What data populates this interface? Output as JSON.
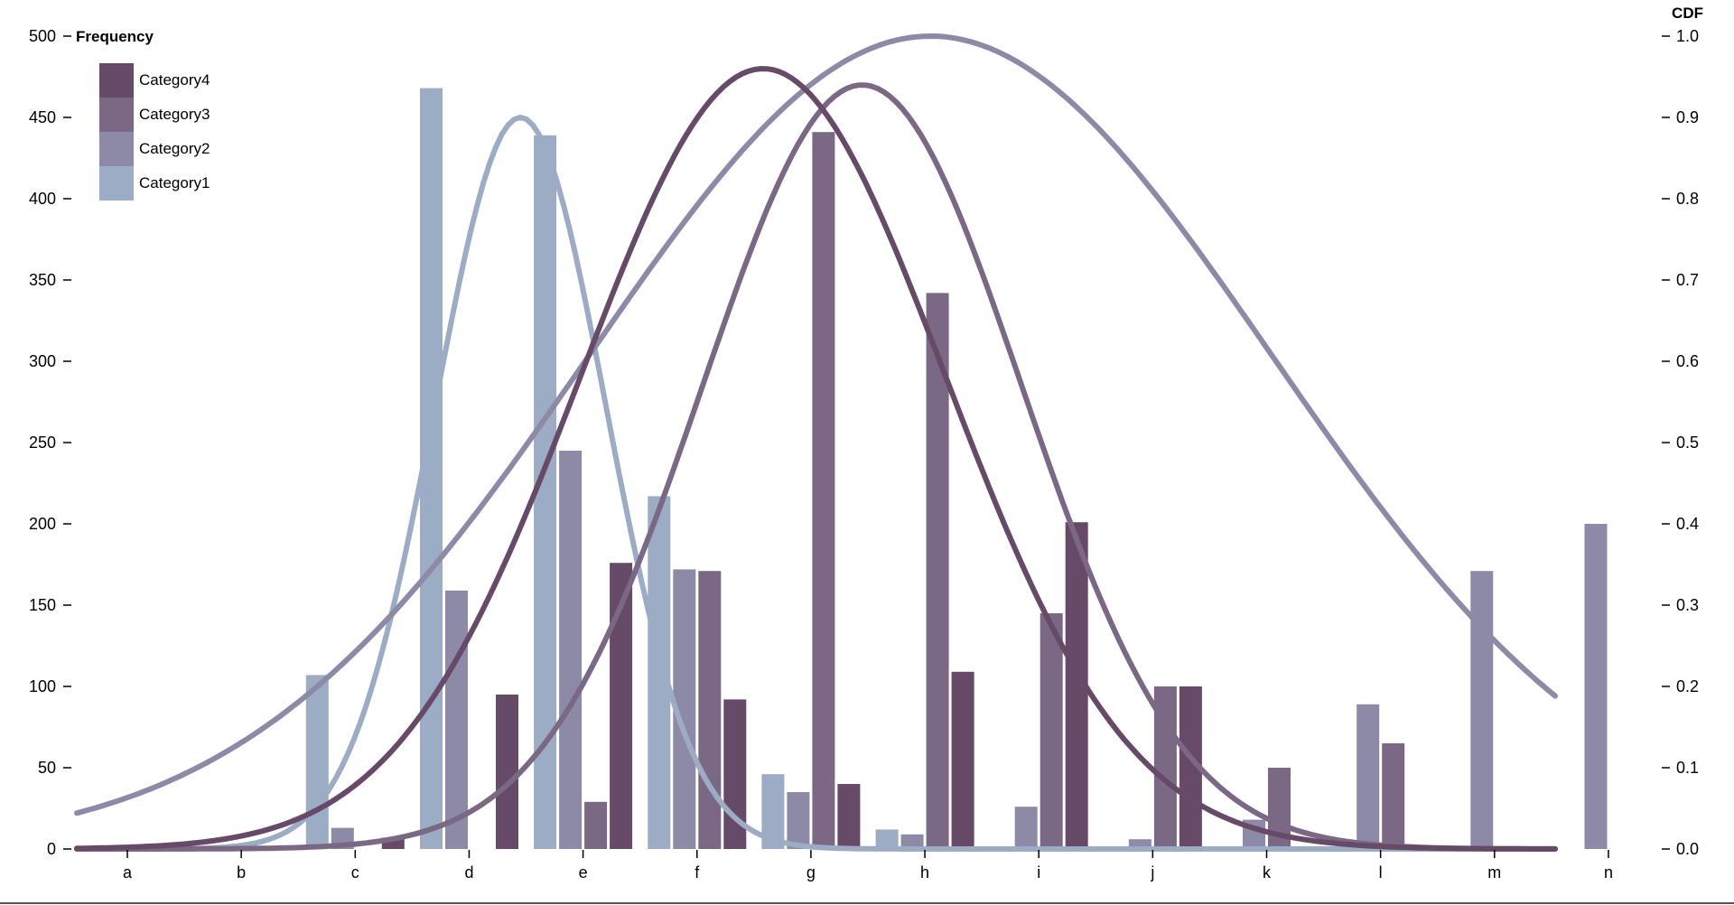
{
  "chart_data": {
    "type": "bar",
    "title": "",
    "xlabel": "",
    "ylabel": "Frequency",
    "y2label": "CDF",
    "ylim": [
      0,
      500
    ],
    "y2lim": [
      0,
      1
    ],
    "yticks": [
      "0",
      "50",
      "100",
      "150",
      "200",
      "250",
      "300",
      "350",
      "400",
      "450",
      "500"
    ],
    "y2ticks": [
      "0.0",
      "0.1",
      "0.2",
      "0.3",
      "0.4",
      "0.5",
      "0.6",
      "0.7",
      "0.8",
      "0.9",
      "1.0"
    ],
    "categories": [
      "a",
      "b",
      "c",
      "d",
      "e",
      "f",
      "g",
      "h",
      "i",
      "j",
      "k",
      "l",
      "m",
      "n"
    ],
    "legend_position": "top-left",
    "series": [
      {
        "name": "Category1",
        "color": "#9bacc4",
        "values": [
          0,
          0,
          107,
          468,
          439,
          217,
          46,
          12,
          0,
          0,
          0,
          0,
          0,
          0
        ]
      },
      {
        "name": "Category2",
        "color": "#8c8aa6",
        "values": [
          0,
          0,
          13,
          159,
          245,
          172,
          35,
          9,
          26,
          6,
          18,
          89,
          171,
          200
        ]
      },
      {
        "name": "Category3",
        "color": "#7a6885",
        "values": [
          0,
          0,
          0,
          0,
          29,
          171,
          441,
          342,
          145,
          100,
          50,
          65,
          0,
          0
        ]
      },
      {
        "name": "Category4",
        "color": "#664a68",
        "values": [
          0,
          0,
          7,
          95,
          176,
          92,
          40,
          109,
          201,
          100,
          0,
          0,
          0,
          0
        ]
      }
    ],
    "cdf_curves": [
      {
        "series": "Category1",
        "color": "#9bacc4",
        "mean": 3.45,
        "sd": 0.75,
        "peak": 0.9
      },
      {
        "series": "Category2",
        "color": "#8c8aa6",
        "mean": 7.05,
        "sd": 3.0,
        "peak": 1.0
      },
      {
        "series": "Category3",
        "color": "#7a6885",
        "mean": 6.45,
        "sd": 1.4,
        "peak": 0.94
      },
      {
        "series": "Category4",
        "color": "#664a68",
        "mean": 5.58,
        "sd": 1.6,
        "peak": 0.96
      }
    ]
  }
}
